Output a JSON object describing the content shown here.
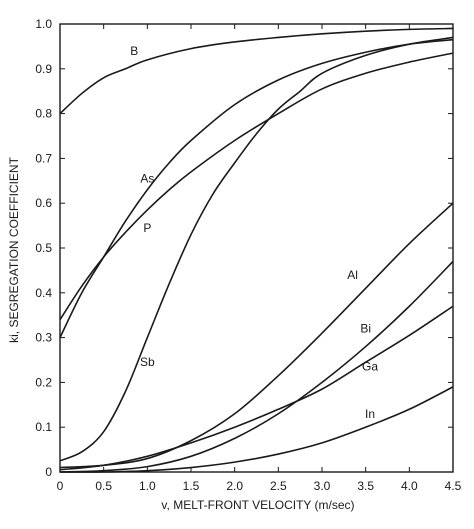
{
  "chart_data": {
    "type": "line",
    "xlabel": "v, MELT-FRONT VELOCITY (m/sec)",
    "ylabel": "ki, SEGREGATION COEFFICIENT",
    "xlim": [
      0,
      4.5
    ],
    "ylim": [
      0,
      1.0
    ],
    "x_ticks": [
      0,
      0.5,
      1.0,
      1.5,
      2.0,
      2.5,
      3.0,
      3.5,
      4.0,
      4.5
    ],
    "x_tick_labels": [
      "0",
      "0.5",
      "1.0",
      "1.5",
      "2.0",
      "2.5",
      "3.0",
      "3.5",
      "4.0",
      "4.5"
    ],
    "y_ticks": [
      0,
      0.1,
      0.2,
      0.3,
      0.4,
      0.5,
      0.6,
      0.7,
      0.8,
      0.9,
      1.0
    ],
    "y_tick_labels": [
      "0",
      "0.1",
      "0.2",
      "0.3",
      "0.4",
      "0.5",
      "0.6",
      "0.7",
      "0.8",
      "0.9",
      "1.0"
    ],
    "grid": false,
    "series": [
      {
        "name": "B",
        "label_at": [
          0.85,
          0.94
        ],
        "x": [
          0,
          0.25,
          0.5,
          0.75,
          1.0,
          1.5,
          2.0,
          2.5,
          3.0,
          3.5,
          4.0,
          4.5
        ],
        "y": [
          0.8,
          0.845,
          0.88,
          0.9,
          0.92,
          0.945,
          0.96,
          0.97,
          0.978,
          0.984,
          0.988,
          0.99
        ]
      },
      {
        "name": "As",
        "label_at": [
          1.0,
          0.655
        ],
        "x": [
          0,
          0.25,
          0.5,
          0.75,
          1.0,
          1.25,
          1.5,
          2.0,
          2.5,
          3.0,
          3.5,
          4.0,
          4.5
        ],
        "y": [
          0.3,
          0.4,
          0.48,
          0.56,
          0.63,
          0.69,
          0.74,
          0.82,
          0.875,
          0.912,
          0.937,
          0.955,
          0.965
        ]
      },
      {
        "name": "P",
        "label_at": [
          1.0,
          0.545
        ],
        "x": [
          0,
          0.25,
          0.5,
          0.75,
          1.0,
          1.25,
          1.5,
          2.0,
          2.5,
          3.0,
          3.5,
          4.0,
          4.5
        ],
        "y": [
          0.34,
          0.415,
          0.48,
          0.535,
          0.585,
          0.63,
          0.67,
          0.74,
          0.8,
          0.855,
          0.89,
          0.915,
          0.935
        ]
      },
      {
        "name": "Sb",
        "label_at": [
          1.0,
          0.245
        ],
        "x": [
          0,
          0.25,
          0.5,
          0.75,
          1.0,
          1.25,
          1.5,
          1.75,
          2.0,
          2.25,
          2.5,
          2.75,
          3.0,
          3.5,
          4.0,
          4.5
        ],
        "y": [
          0.025,
          0.045,
          0.09,
          0.18,
          0.3,
          0.42,
          0.53,
          0.62,
          0.69,
          0.755,
          0.81,
          0.85,
          0.89,
          0.93,
          0.955,
          0.97
        ]
      },
      {
        "name": "Al",
        "label_at": [
          3.35,
          0.44
        ],
        "x": [
          0,
          0.5,
          1.0,
          1.5,
          2.0,
          2.5,
          3.0,
          3.5,
          4.0,
          4.5
        ],
        "y": [
          0.01,
          0.015,
          0.03,
          0.07,
          0.13,
          0.215,
          0.31,
          0.41,
          0.51,
          0.6
        ]
      },
      {
        "name": "Bi",
        "label_at": [
          3.5,
          0.32
        ],
        "x": [
          0,
          0.5,
          1.0,
          1.5,
          2.0,
          2.5,
          3.0,
          3.5,
          4.0,
          4.5
        ],
        "y": [
          0.0,
          0.003,
          0.012,
          0.035,
          0.075,
          0.13,
          0.2,
          0.28,
          0.37,
          0.47
        ]
      },
      {
        "name": "Ga",
        "label_at": [
          3.55,
          0.235
        ],
        "x": [
          0,
          0.5,
          1.0,
          1.5,
          2.0,
          2.5,
          3.0,
          3.5,
          4.0,
          4.5
        ],
        "y": [
          0.005,
          0.015,
          0.035,
          0.065,
          0.1,
          0.14,
          0.185,
          0.245,
          0.305,
          0.37
        ]
      },
      {
        "name": "In",
        "label_at": [
          3.55,
          0.13
        ],
        "x": [
          0,
          0.5,
          1.0,
          1.5,
          2.0,
          2.5,
          3.0,
          3.5,
          4.0,
          4.5
        ],
        "y": [
          0.0,
          0.0,
          0.003,
          0.01,
          0.022,
          0.04,
          0.065,
          0.1,
          0.14,
          0.19
        ]
      }
    ]
  }
}
